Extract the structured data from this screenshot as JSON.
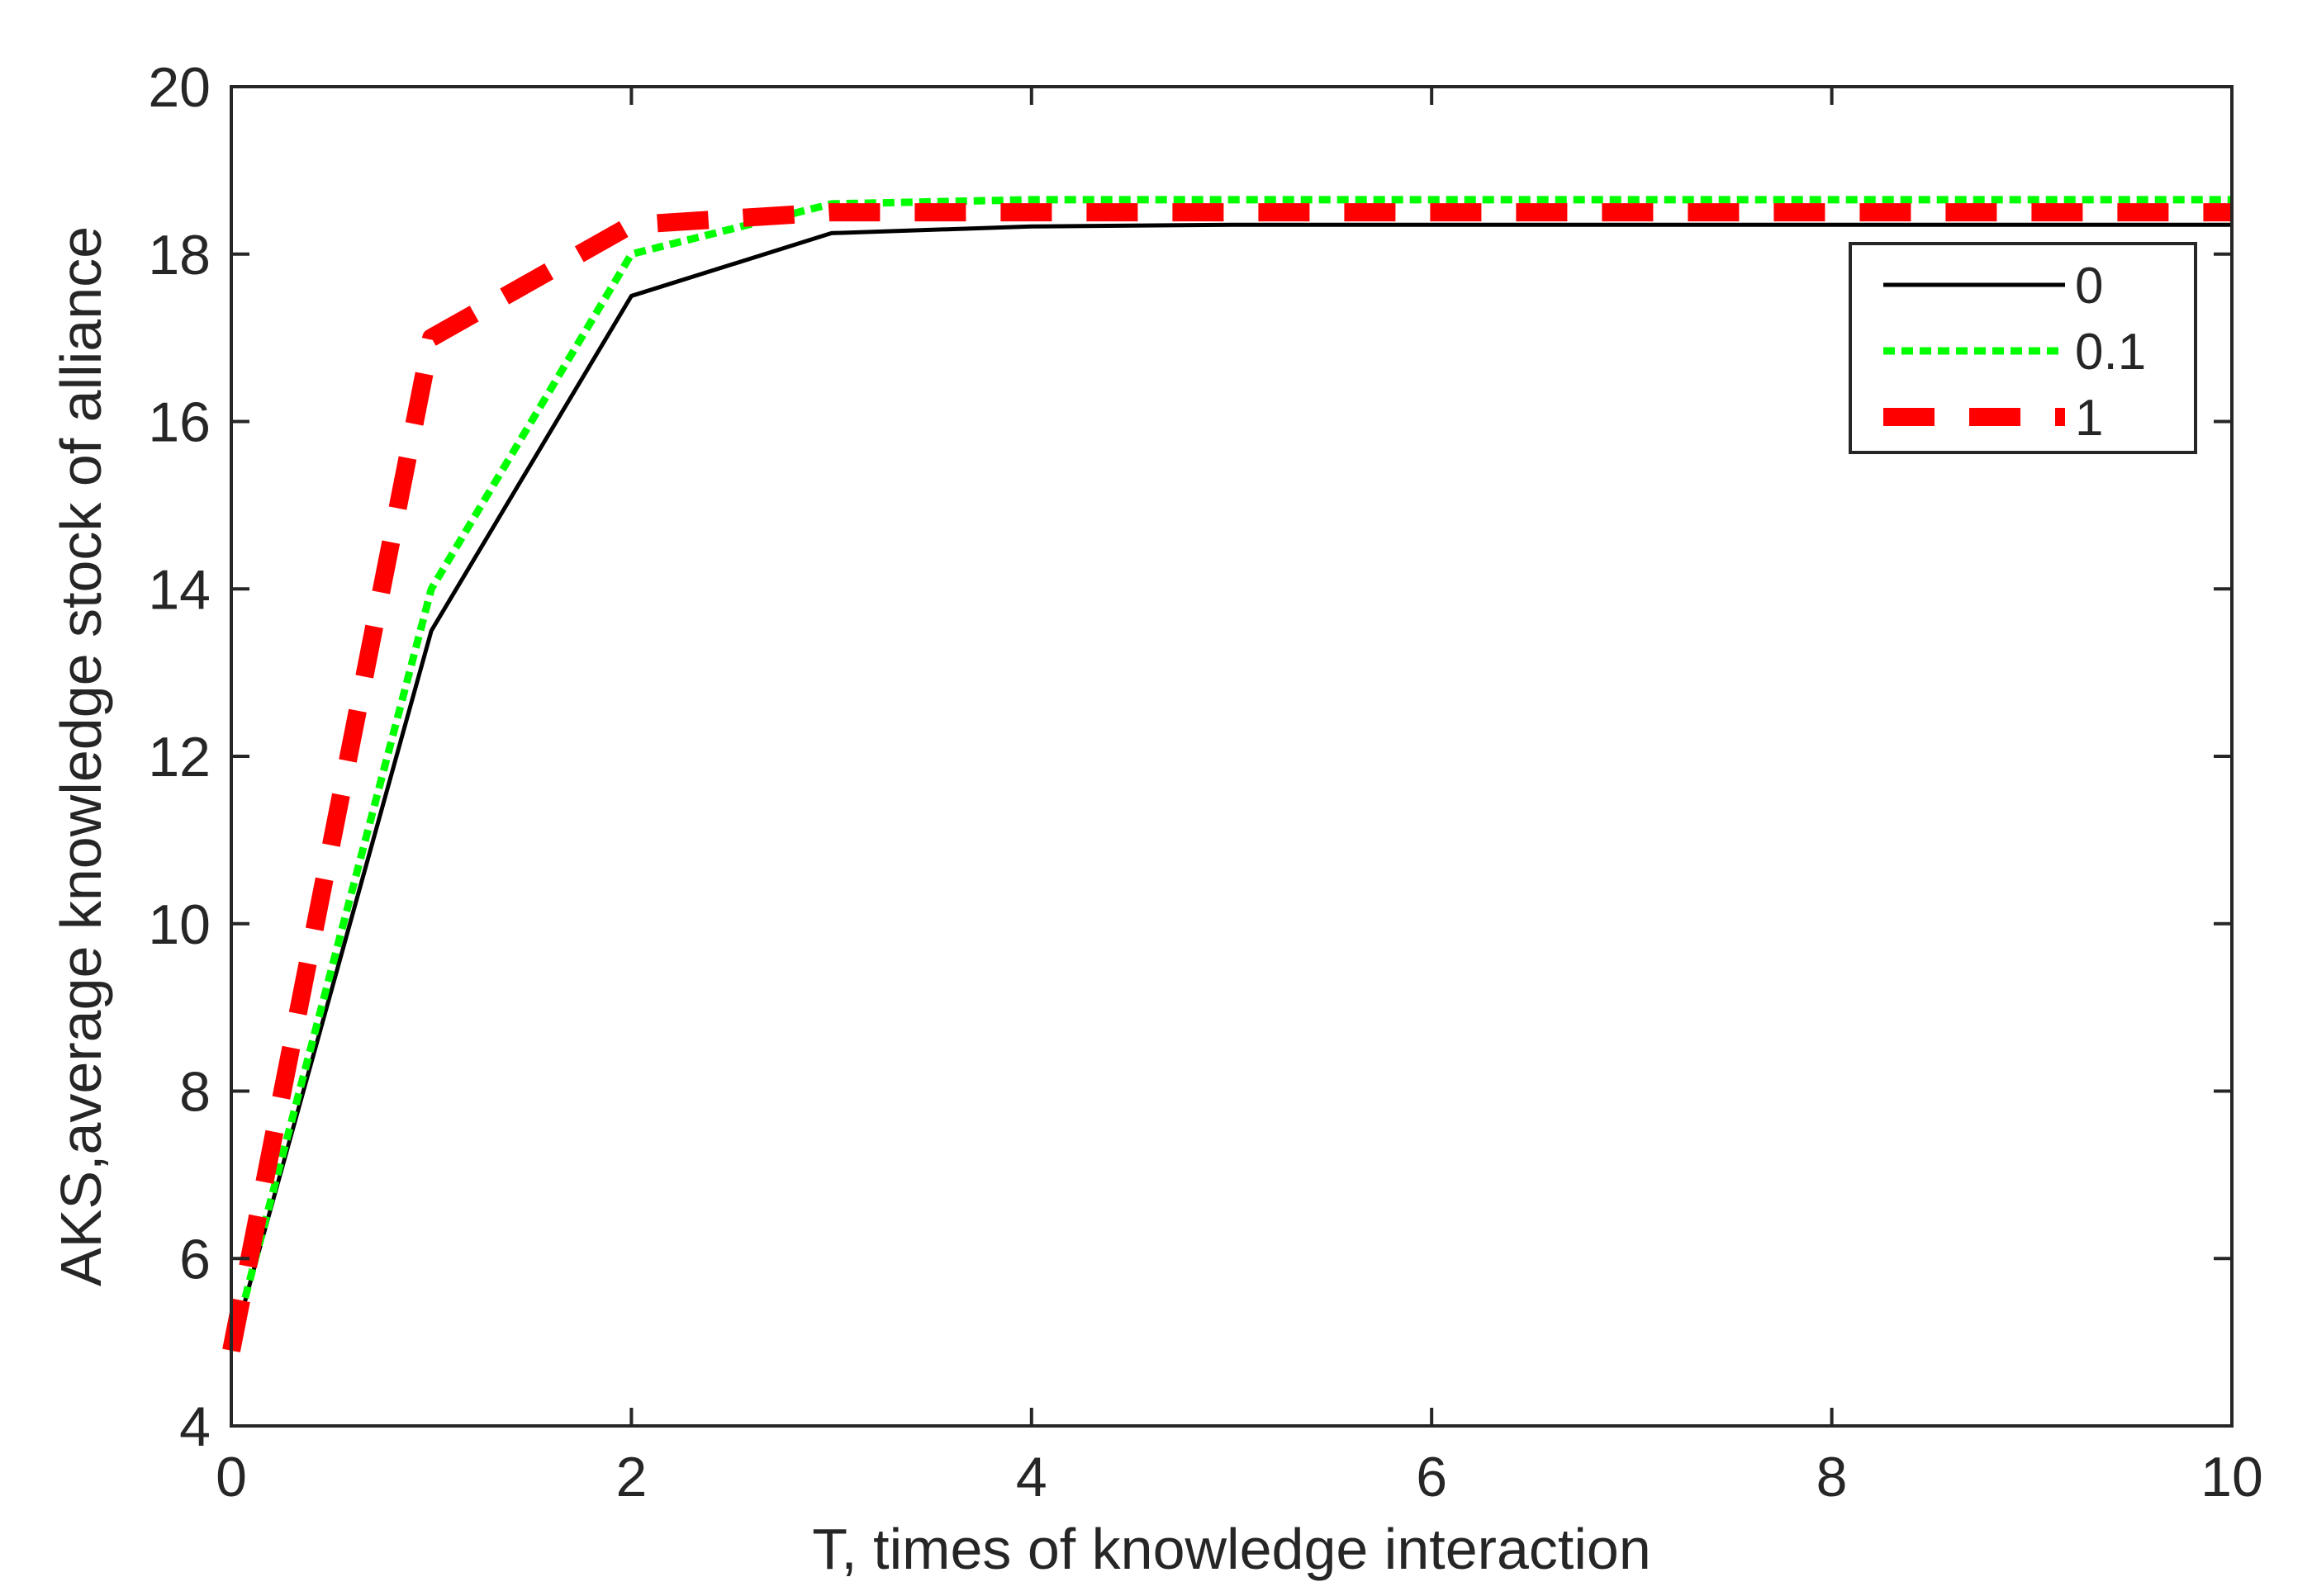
{
  "chart_data": {
    "type": "line",
    "title": "",
    "xlabel": "T, times of knowledge interaction",
    "ylabel": "AKS,average knowledge stock of alliance",
    "xlim": [
      0,
      10
    ],
    "ylim": [
      4,
      20
    ],
    "x_ticks": [
      "0",
      "2",
      "4",
      "6",
      "8",
      "10"
    ],
    "y_ticks": [
      "4",
      "6",
      "8",
      "10",
      "12",
      "14",
      "16",
      "18",
      "20"
    ],
    "grid": false,
    "legend_position": "top-right",
    "x": [
      0,
      1,
      2,
      3,
      4,
      5,
      6,
      7,
      8,
      9,
      10
    ],
    "series": [
      {
        "name": "0",
        "style": "solid",
        "color": "#000000",
        "values": [
          4.9,
          13.5,
          17.5,
          18.25,
          18.33,
          18.35,
          18.35,
          18.35,
          18.35,
          18.35,
          18.35
        ]
      },
      {
        "name": "0.1",
        "style": "dotted",
        "color": "#00ff00",
        "values": [
          4.9,
          14.0,
          18.0,
          18.6,
          18.65,
          18.65,
          18.65,
          18.65,
          18.65,
          18.65,
          18.65
        ]
      },
      {
        "name": "1",
        "style": "dashed",
        "color": "#ff0000",
        "values": [
          4.9,
          17.0,
          18.35,
          18.5,
          18.5,
          18.5,
          18.5,
          18.5,
          18.5,
          18.5,
          18.5
        ]
      }
    ]
  }
}
